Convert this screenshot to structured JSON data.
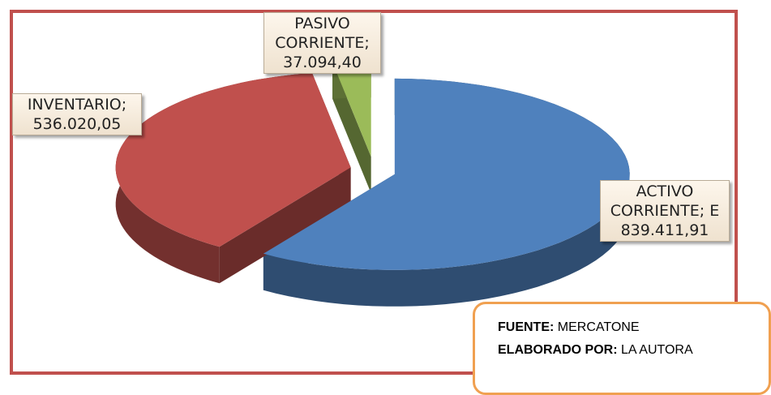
{
  "chart_data": {
    "type": "pie3d",
    "categories": [
      "ACTIVO CORRIENTE; E",
      "INVENTARIO;",
      "PASIVO CORRIENTE;"
    ],
    "values": [
      839411.91,
      536020.05,
      37094.4
    ],
    "value_labels": [
      "839.411,91",
      "536.020,05",
      "37.094,40"
    ],
    "colors": [
      "#4f81bd",
      "#c0504d",
      "#9bbb59"
    ],
    "notes": {
      "source_label": "FUENTE:",
      "source": "MERCATONE",
      "author_label": "ELABORADO POR:",
      "author": "LA AUTORA"
    }
  }
}
